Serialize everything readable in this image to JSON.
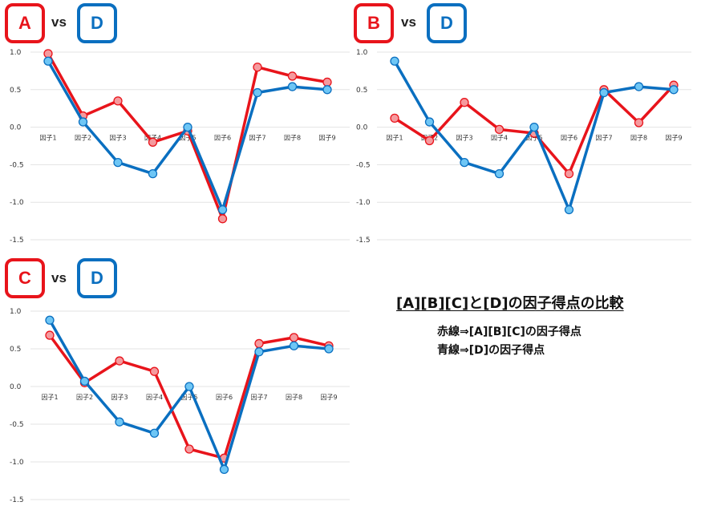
{
  "panels": [
    {
      "left": "A",
      "vs": "vs",
      "right": "D"
    },
    {
      "left": "B",
      "vs": "vs",
      "right": "D"
    },
    {
      "left": "C",
      "vs": "vs",
      "right": "D"
    }
  ],
  "legend": {
    "title": "[A][B][C]と[D]の因子得点の比較",
    "red_line": "赤線⇒[A][B][C]の因子得点",
    "blue_line": "青線⇒[D]の因子得点"
  },
  "colors": {
    "red": "#e8141b",
    "blue": "#0a6fc0",
    "red_marker": "#f59a9e",
    "blue_marker": "#6ec6f5"
  },
  "chart_data": [
    {
      "type": "line",
      "categories": [
        "因子1",
        "因子2",
        "因子3",
        "因子4",
        "因子5",
        "因子6",
        "因子7",
        "因子8",
        "因子9"
      ],
      "yticks": [
        "1.0",
        "0.5",
        "0.0",
        "-0.5",
        "-1.0",
        "-1.5"
      ],
      "ylim": [
        -1.5,
        1.0
      ],
      "series": [
        {
          "name": "A",
          "color": "red",
          "values": [
            0.98,
            0.15,
            0.35,
            -0.2,
            -0.05,
            -1.22,
            0.8,
            0.68,
            0.6
          ]
        },
        {
          "name": "D",
          "color": "blue",
          "values": [
            0.88,
            0.07,
            -0.47,
            -0.62,
            0.0,
            -1.1,
            0.46,
            0.54,
            0.5
          ]
        }
      ]
    },
    {
      "type": "line",
      "categories": [
        "因子1",
        "因子2",
        "因子3",
        "因子4",
        "因子5",
        "因子6",
        "因子7",
        "因子8",
        "因子9"
      ],
      "yticks": [
        "1.0",
        "0.5",
        "0.0",
        "-0.5",
        "-1.0",
        "-1.5"
      ],
      "ylim": [
        -1.5,
        1.0
      ],
      "series": [
        {
          "name": "B",
          "color": "red",
          "values": [
            0.12,
            -0.18,
            0.33,
            -0.03,
            -0.08,
            -0.62,
            0.5,
            0.06,
            0.56
          ]
        },
        {
          "name": "D",
          "color": "blue",
          "values": [
            0.88,
            0.07,
            -0.47,
            -0.62,
            0.0,
            -1.1,
            0.46,
            0.54,
            0.5
          ]
        }
      ]
    },
    {
      "type": "line",
      "categories": [
        "因子1",
        "因子2",
        "因子3",
        "因子4",
        "因子5",
        "因子6",
        "因子7",
        "因子8",
        "因子9"
      ],
      "yticks": [
        "1.0",
        "0.5",
        "0.0",
        "-0.5",
        "-1.0",
        "-1.5"
      ],
      "ylim": [
        -1.5,
        1.0
      ],
      "series": [
        {
          "name": "C",
          "color": "red",
          "values": [
            0.68,
            0.05,
            0.34,
            0.2,
            -0.83,
            -0.95,
            0.57,
            0.65,
            0.54
          ]
        },
        {
          "name": "D",
          "color": "blue",
          "values": [
            0.88,
            0.07,
            -0.47,
            -0.62,
            0.0,
            -1.1,
            0.46,
            0.54,
            0.5
          ]
        }
      ]
    }
  ]
}
